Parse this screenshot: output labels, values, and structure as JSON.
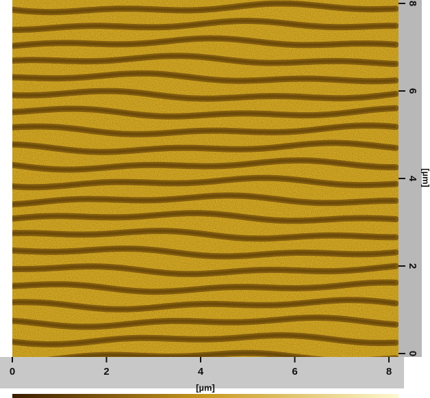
{
  "chart_data": {
    "type": "image",
    "xlabel": "[µm]",
    "ylabel": "[µm]",
    "xlim": [
      0,
      8
    ],
    "ylim": [
      0,
      8
    ],
    "xticks": [
      0,
      2,
      4,
      6,
      8
    ],
    "yticks": [
      0,
      2,
      4,
      6,
      8
    ]
  }
}
